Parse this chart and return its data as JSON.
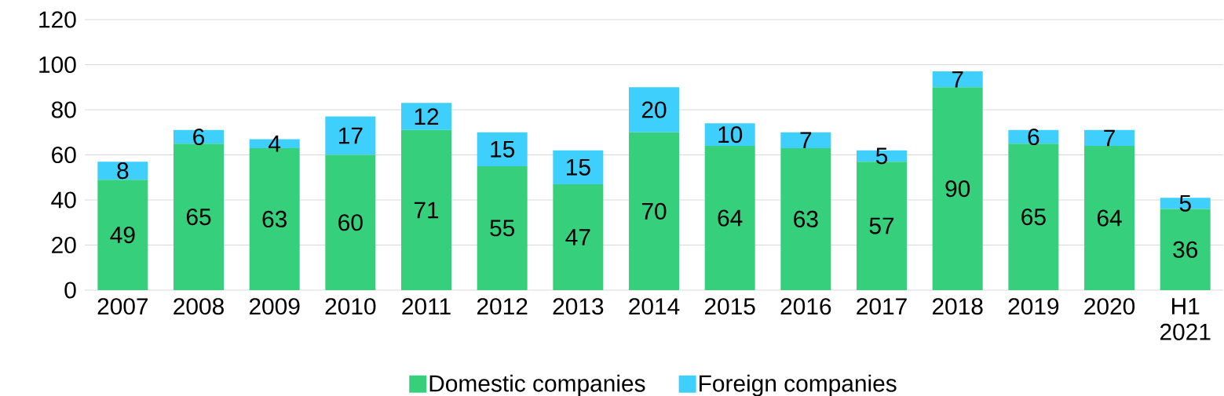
{
  "chart_data": {
    "type": "bar",
    "stacked": true,
    "categories": [
      "2007",
      "2008",
      "2009",
      "2010",
      "2011",
      "2012",
      "2013",
      "2014",
      "2015",
      "2016",
      "2017",
      "2018",
      "2019",
      "2020",
      "H1 2021"
    ],
    "series": [
      {
        "name": "Domestic companies",
        "color": "#36d07c",
        "values": [
          49,
          65,
          63,
          60,
          71,
          55,
          47,
          70,
          64,
          63,
          57,
          90,
          65,
          64,
          36
        ]
      },
      {
        "name": "Foreign companies",
        "color": "#3ecffc",
        "values": [
          8,
          6,
          4,
          17,
          12,
          15,
          15,
          20,
          10,
          7,
          5,
          7,
          6,
          7,
          5
        ]
      }
    ],
    "ylim": [
      0,
      120
    ],
    "yticks": [
      0,
      20,
      40,
      60,
      80,
      100,
      120
    ],
    "grid": "y",
    "legend": "bottom",
    "data_labels": true
  }
}
